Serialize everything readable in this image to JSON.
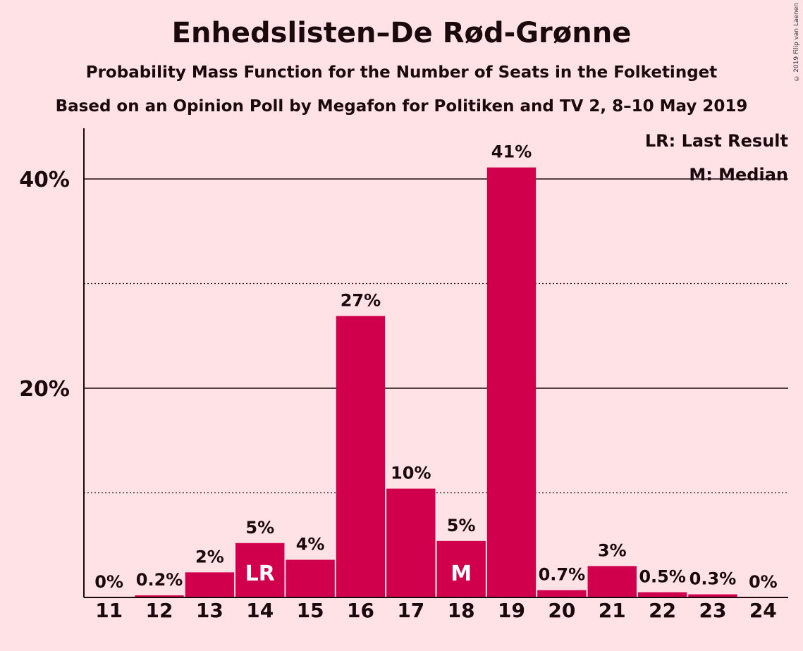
{
  "chart_data": {
    "type": "bar",
    "title": "Enhedslisten–De Rød-Grønne",
    "subtitle1": "Probability Mass Function for the Number of Seats in the Folketinget",
    "subtitle2": "Based on an Opinion Poll by Megafon for Politiken and TV 2, 8–10 May 2019",
    "copyright": "© 2019 Filip van Laenen",
    "categories": [
      "11",
      "12",
      "13",
      "14",
      "15",
      "16",
      "17",
      "18",
      "19",
      "20",
      "21",
      "22",
      "23",
      "24"
    ],
    "values": [
      0,
      0.2,
      2.4,
      5.2,
      3.6,
      26.9,
      10.4,
      5.4,
      41.1,
      0.7,
      3.0,
      0.5,
      0.3,
      0
    ],
    "value_labels": [
      "0%",
      "0.2%",
      "2%",
      "5%",
      "4%",
      "27%",
      "10%",
      "5%",
      "41%",
      "0.7%",
      "3%",
      "0.5%",
      "0.3%",
      "0%"
    ],
    "bar_markers": {
      "14": "LR",
      "18": "M"
    },
    "ylim": [
      0,
      45
    ],
    "y_ticks": [
      {
        "value": 20,
        "label": "20%"
      },
      {
        "value": 40,
        "label": "40%"
      }
    ],
    "minor_gridlines": [
      10,
      30
    ],
    "legend": [
      "LR: Last Result",
      "M: Median"
    ],
    "legend_position": "top-right",
    "xlabel": "",
    "ylabel": "",
    "colors": {
      "bar": "#d0004d",
      "background": "#ffe2e6",
      "text": "#1a0a0d"
    }
  }
}
